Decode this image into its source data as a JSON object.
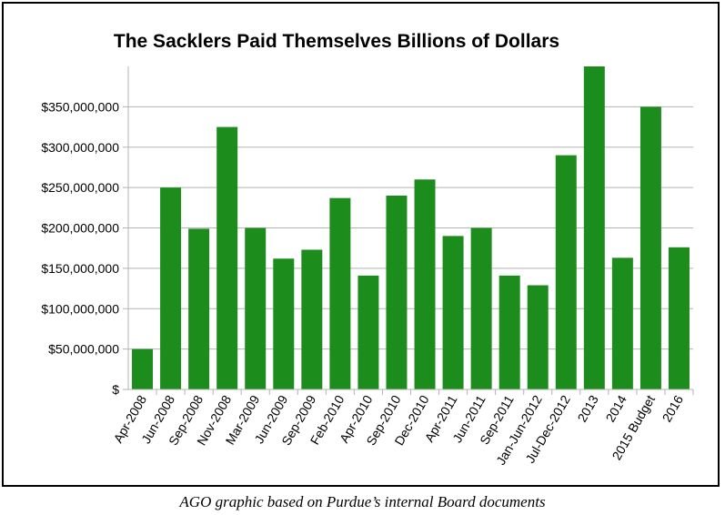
{
  "caption": "AGO graphic based on Purdue’s internal Board documents",
  "chart_data": {
    "type": "bar",
    "title": "The Sacklers Paid Themselves Billions of Dollars",
    "xlabel": "",
    "ylabel": "",
    "ylim": [
      0,
      400000000
    ],
    "grid": true,
    "bar_color": "#1c8c1c",
    "y_ticks": [
      {
        "value": 0,
        "label": "$"
      },
      {
        "value": 50000000,
        "label": "$50,000,000"
      },
      {
        "value": 100000000,
        "label": "$100,000,000"
      },
      {
        "value": 150000000,
        "label": "$150,000,000"
      },
      {
        "value": 200000000,
        "label": "$200,000,000"
      },
      {
        "value": 250000000,
        "label": "$250,000,000"
      },
      {
        "value": 300000000,
        "label": "$300,000,000"
      },
      {
        "value": 350000000,
        "label": "$350,000,000"
      }
    ],
    "categories": [
      "Apr-2008",
      "Jun-2008",
      "Sep-2008",
      "Nov-2008",
      "Mar-2009",
      "Jun-2009",
      "Sep-2009",
      "Feb-2010",
      "Apr-2010",
      "Sep-2010",
      "Dec-2010",
      "Apr-2011",
      "Jun-2011",
      "Sep-2011",
      "Jan-Jun-2012",
      "Jul-Dec-2012",
      "2013",
      "2014",
      "2015 Budget",
      "2016"
    ],
    "values": [
      50000000,
      250000000,
      199000000,
      325000000,
      200000000,
      162000000,
      173000000,
      237000000,
      141000000,
      240000000,
      260000000,
      190000000,
      200000000,
      141000000,
      129000000,
      290000000,
      400000000,
      163000000,
      350000000,
      176000000
    ]
  }
}
